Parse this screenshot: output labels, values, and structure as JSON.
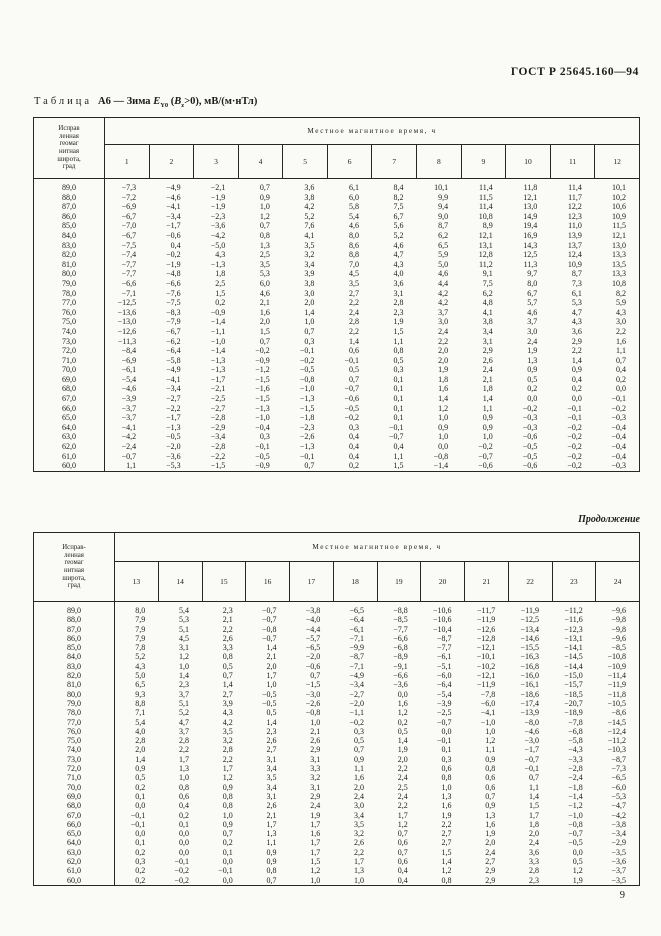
{
  "page": {
    "gost_header": "ГОСТ Р 25645.160—94",
    "continuation": "Продолжение",
    "page_number": "9"
  },
  "title": {
    "prefix": "Таблица",
    "mid": "А6 — Зима",
    "sym": "E",
    "sym_sub": "Y0",
    "open": "(",
    "bsym": "B",
    "b_sub": "z",
    "tail": ">0),",
    "units": "мВ/(м·нТл)"
  },
  "table1": {
    "stub_lines": [
      "Исправ",
      "ленная",
      "геомаг",
      "нитная",
      "широта,",
      "град"
    ],
    "time_header": "Местное магнитное время, ч",
    "columns": [
      "1",
      "2",
      "3",
      "4",
      "5",
      "6",
      "7",
      "8",
      "9",
      "10",
      "11",
      "12"
    ],
    "rows": [
      {
        "lat": "89,0",
        "v": [
          "−7,3",
          "−4,9",
          "−2,1",
          "0,7",
          "3,6",
          "6,1",
          "8,4",
          "10,1",
          "11,4",
          "11,8",
          "11,4",
          "10,1"
        ]
      },
      {
        "lat": "88,0",
        "v": [
          "−7,2",
          "−4,6",
          "−1,9",
          "0,9",
          "3,8",
          "6,0",
          "8,2",
          "9,9",
          "11,5",
          "12,1",
          "11,7",
          "10,2"
        ]
      },
      {
        "lat": "87,0",
        "v": [
          "−6,9",
          "−4,1",
          "−1,9",
          "1,0",
          "4,2",
          "5,8",
          "7,5",
          "9,4",
          "11,4",
          "13,0",
          "12,2",
          "10,6"
        ]
      },
      {
        "lat": "86,0",
        "v": [
          "−6,7",
          "−3,4",
          "−2,3",
          "1,2",
          "5,2",
          "5,4",
          "6,7",
          "9,0",
          "10,8",
          "14,9",
          "12,3",
          "10,9"
        ]
      },
      {
        "lat": "85,0",
        "v": [
          "−7,0",
          "−1,7",
          "−3,6",
          "0,7",
          "7,6",
          "4,6",
          "5,6",
          "8,7",
          "8,9",
          "19,4",
          "11,0",
          "11,5"
        ]
      },
      {
        "lat": "84,0",
        "v": [
          "−6,7",
          "−0,6",
          "−4,2",
          "0,8",
          "4,1",
          "8,0",
          "5,2",
          "6,2",
          "12,1",
          "16,9",
          "13,9",
          "12,1"
        ]
      },
      {
        "lat": "83,0",
        "v": [
          "−7,5",
          "0,4",
          "−5,0",
          "1,3",
          "3,5",
          "8,6",
          "4,6",
          "6,5",
          "13,1",
          "14,3",
          "13,7",
          "13,0"
        ]
      },
      {
        "lat": "82,0",
        "v": [
          "−7,4",
          "−0,2",
          "4,3",
          "2,5",
          "3,2",
          "8,8",
          "4,7",
          "5,9",
          "12,8",
          "12,5",
          "12,4",
          "13,3"
        ]
      },
      {
        "lat": "81,0",
        "v": [
          "−7,7",
          "−1,9",
          "−1,3",
          "3,5",
          "3,4",
          "7,0",
          "4,3",
          "5,0",
          "11,2",
          "11,3",
          "10,9",
          "13,5"
        ]
      },
      {
        "lat": "80,0",
        "v": [
          "−7,7",
          "−4,8",
          "1,8",
          "5,3",
          "3,9",
          "4,5",
          "4,0",
          "4,6",
          "9,1",
          "9,7",
          "8,7",
          "13,3"
        ]
      },
      {
        "lat": "79,0",
        "v": [
          "−6,6",
          "−6,6",
          "2,5",
          "6,0",
          "3,8",
          "3,5",
          "3,6",
          "4,4",
          "7,5",
          "8,0",
          "7,3",
          "10,8"
        ]
      },
      {
        "lat": "78,0",
        "v": [
          "−7,1",
          "−7,6",
          "1,5",
          "4,6",
          "3,0",
          "2,7",
          "3,1",
          "4,2",
          "6,2",
          "6,7",
          "6,1",
          "8,2"
        ]
      },
      {
        "lat": "77,0",
        "v": [
          "−12,5",
          "−7,5",
          "0,2",
          "2,1",
          "2,0",
          "2,2",
          "2,8",
          "4,2",
          "4,8",
          "5,7",
          "5,3",
          "5,9"
        ]
      },
      {
        "lat": "76,0",
        "v": [
          "−13,6",
          "−8,3",
          "−0,9",
          "1,6",
          "1,4",
          "2,4",
          "2,3",
          "3,7",
          "4,1",
          "4,6",
          "4,7",
          "4,3"
        ]
      },
      {
        "lat": "75,0",
        "v": [
          "−13,0",
          "−7,9",
          "−1,4",
          "2,0",
          "1,0",
          "2,8",
          "1,9",
          "3,0",
          "3,8",
          "3,7",
          "4,3",
          "3,0"
        ]
      },
      {
        "lat": "74,0",
        "v": [
          "−12,6",
          "−6,7",
          "−1,1",
          "1,5",
          "0,7",
          "2,2",
          "1,5",
          "2,4",
          "3,4",
          "3,0",
          "3,6",
          "2,2"
        ]
      },
      {
        "lat": "73,0",
        "v": [
          "−11,3",
          "−6,2",
          "−1,0",
          "0,7",
          "0,3",
          "1,4",
          "1,1",
          "2,2",
          "3,1",
          "2,4",
          "2,9",
          "1,6"
        ]
      },
      {
        "lat": "72,0",
        "v": [
          "−8,4",
          "−6,4",
          "−1,4",
          "−0,2",
          "−0,1",
          "0,6",
          "0,8",
          "2,0",
          "2,9",
          "1,9",
          "2,2",
          "1,1"
        ]
      },
      {
        "lat": "71,0",
        "v": [
          "−6,9",
          "−5,8",
          "−1,3",
          "−0,9",
          "−0,2",
          "−0,1",
          "0,5",
          "2,0",
          "2,6",
          "1,3",
          "1,4",
          "0,7"
        ]
      },
      {
        "lat": "70,0",
        "v": [
          "−6,1",
          "−4,9",
          "−1,3",
          "−1,2",
          "−0,5",
          "0,5",
          "0,3",
          "1,9",
          "2,4",
          "0,9",
          "0,9",
          "0,4"
        ]
      },
      {
        "lat": "69,0",
        "v": [
          "−5,4",
          "−4,1",
          "−1,7",
          "−1,5",
          "−0,8",
          "0,7",
          "0,1",
          "1,8",
          "2,1",
          "0,5",
          "0,4",
          "0,2"
        ]
      },
      {
        "lat": "68,0",
        "v": [
          "−4,6",
          "−3,4",
          "−2,1",
          "−1,6",
          "−1,0",
          "−0,7",
          "0,1",
          "1,6",
          "1,8",
          "0,2",
          "0,2",
          "0,0"
        ]
      },
      {
        "lat": "67,0",
        "v": [
          "−3,9",
          "−2,7",
          "−2,5",
          "−1,5",
          "−1,3",
          "−0,6",
          "0,1",
          "1,4",
          "1,4",
          "0,0",
          "0,0",
          "−0,1"
        ]
      },
      {
        "lat": "66,0",
        "v": [
          "−3,7",
          "−2,2",
          "−2,7",
          "−1,3",
          "−1,5",
          "−0,5",
          "0,1",
          "1,2",
          "1,1",
          "−0,2",
          "−0,1",
          "−0,2"
        ]
      },
      {
        "lat": "65,0",
        "v": [
          "−3,7",
          "−1,7",
          "−2,8",
          "−1,0",
          "−1,8",
          "−0,2",
          "0,1",
          "1,0",
          "0,9",
          "−0,3",
          "−0,1",
          "−0,3"
        ]
      },
      {
        "lat": "64,0",
        "v": [
          "−4,1",
          "−1,3",
          "−2,9",
          "−0,4",
          "−2,3",
          "0,3",
          "−0,1",
          "0,9",
          "0,9",
          "−0,3",
          "−0,2",
          "−0,4"
        ]
      },
      {
        "lat": "63,0",
        "v": [
          "−4,2",
          "−0,5",
          "−3,4",
          "0,3",
          "−2,6",
          "0,4",
          "−0,7",
          "1,0",
          "1,0",
          "−0,6",
          "−0,2",
          "−0,4"
        ]
      },
      {
        "lat": "62,0",
        "v": [
          "−2,4",
          "−2,0",
          "−2,8",
          "−0,1",
          "−1,3",
          "0,4",
          "0,4",
          "0,0",
          "−0,2",
          "−0,5",
          "−0,2",
          "−0,4"
        ]
      },
      {
        "lat": "61,0",
        "v": [
          "−0,7",
          "−3,6",
          "−2,2",
          "−0,5",
          "−0,1",
          "0,4",
          "1,1",
          "−0,8",
          "−0,7",
          "−0,5",
          "−0,2",
          "−0,4"
        ]
      },
      {
        "lat": "60,0",
        "v": [
          "1,1",
          "−5,3",
          "−1,5",
          "−0,9",
          "0,7",
          "0,2",
          "1,5",
          "−1,4",
          "−0,6",
          "−0,6",
          "−0,2",
          "−0,3"
        ]
      }
    ]
  },
  "table2": {
    "stub_lines": [
      "Исправ-",
      "ленная",
      "геомаг",
      "нитная",
      "широта,",
      "град"
    ],
    "time_header": "Местное магнитное время, ч",
    "columns": [
      "13",
      "14",
      "15",
      "16",
      "17",
      "18",
      "19",
      "20",
      "21",
      "22",
      "23",
      "24"
    ],
    "rows": [
      {
        "lat": "89,0",
        "v": [
          "8,0",
          "5,4",
          "2,3",
          "−0,7",
          "−3,8",
          "−6,5",
          "−8,8",
          "−10,6",
          "−11,7",
          "−11,9",
          "−11,2",
          "−9,6"
        ]
      },
      {
        "lat": "88,0",
        "v": [
          "7,9",
          "5,3",
          "2,1",
          "−0,7",
          "−4,0",
          "−6,4",
          "−8,5",
          "−10,6",
          "−11,9",
          "−12,5",
          "−11,6",
          "−9,8"
        ]
      },
      {
        "lat": "87,0",
        "v": [
          "7,9",
          "5,1",
          "2,2",
          "−0,8",
          "−4,4",
          "−6,1",
          "−7,7",
          "−10,4",
          "−12,6",
          "−13,4",
          "−12,3",
          "−9,8"
        ]
      },
      {
        "lat": "86,0",
        "v": [
          "7,9",
          "4,5",
          "2,6",
          "−0,7",
          "−5,7",
          "−7,1",
          "−6,6",
          "−8,7",
          "−12,8",
          "−14,6",
          "−13,1",
          "−9,6"
        ]
      },
      {
        "lat": "85,0",
        "v": [
          "7,8",
          "3,1",
          "3,3",
          "1,4",
          "−6,5",
          "−9,9",
          "−6,8",
          "−7,7",
          "−12,1",
          "−15,5",
          "−14,1",
          "−8,5"
        ]
      },
      {
        "lat": "84,0",
        "v": [
          "5,2",
          "1,2",
          "0,8",
          "2,1",
          "−2,0",
          "−8,7",
          "−8,9",
          "−6,1",
          "−10,1",
          "−16,3",
          "−14,5",
          "−10,8"
        ]
      },
      {
        "lat": "83,0",
        "v": [
          "4,3",
          "1,0",
          "0,5",
          "2,0",
          "−0,6",
          "−7,1",
          "−9,1",
          "−5,1",
          "−10,2",
          "−16,8",
          "−14,4",
          "−10,9"
        ]
      },
      {
        "lat": "82,0",
        "v": [
          "5,0",
          "1,4",
          "0,7",
          "1,7",
          "0,7",
          "−4,9",
          "−6,6",
          "−6,0",
          "−12,1",
          "−16,0",
          "−15,0",
          "−11,4"
        ]
      },
      {
        "lat": "81,0",
        "v": [
          "6,5",
          "2,3",
          "1,4",
          "1,0",
          "−1,5",
          "−3,4",
          "−3,6",
          "−6,4",
          "−11,9",
          "−16,1",
          "−15,7",
          "−11,9"
        ]
      },
      {
        "lat": "80,0",
        "v": [
          "9,3",
          "3,7",
          "2,7",
          "−0,5",
          "−3,0",
          "−2,7",
          "0,0",
          "−5,4",
          "−7,8",
          "−18,6",
          "−18,5",
          "−11,8"
        ]
      },
      {
        "lat": "79,0",
        "v": [
          "8,8",
          "5,1",
          "3,9",
          "−0,5",
          "−2,6",
          "−2,0",
          "1,6",
          "−3,9",
          "−6,0",
          "−17,4",
          "−20,7",
          "−10,5"
        ]
      },
      {
        "lat": "78,0",
        "v": [
          "7,1",
          "5,2",
          "4,3",
          "0,5",
          "−0,8",
          "−1,1",
          "1,2",
          "−2,5",
          "−4,1",
          "−13,9",
          "−18,9",
          "−8,6"
        ]
      },
      {
        "lat": "77,0",
        "v": [
          "5,4",
          "4,7",
          "4,2",
          "1,4",
          "1,0",
          "−0,2",
          "0,2",
          "−0,7",
          "−1,0",
          "−8,0",
          "−7,8",
          "−14,5"
        ]
      },
      {
        "lat": "76,0",
        "v": [
          "4,0",
          "3,7",
          "3,5",
          "2,3",
          "2,1",
          "0,3",
          "0,5",
          "0,0",
          "1,0",
          "−4,6",
          "−6,8",
          "−12,4"
        ]
      },
      {
        "lat": "75,0",
        "v": [
          "2,8",
          "2,8",
          "3,2",
          "2,6",
          "2,6",
          "0,5",
          "1,4",
          "−0,1",
          "1,2",
          "−3,0",
          "−5,8",
          "−11,2"
        ]
      },
      {
        "lat": "74,0",
        "v": [
          "2,0",
          "2,2",
          "2,8",
          "2,7",
          "2,9",
          "0,7",
          "1,9",
          "0,1",
          "1,1",
          "−1,7",
          "−4,3",
          "−10,3"
        ]
      },
      {
        "lat": "73,0",
        "v": [
          "1,4",
          "1,7",
          "2,2",
          "3,1",
          "3,1",
          "0,9",
          "2,0",
          "0,3",
          "0,9",
          "−0,7",
          "−3,3",
          "−8,7"
        ]
      },
      {
        "lat": "72,0",
        "v": [
          "0,9",
          "1,3",
          "1,7",
          "3,4",
          "3,3",
          "1,1",
          "2,2",
          "0,6",
          "0,8",
          "−0,1",
          "−2,8",
          "−7,3"
        ]
      },
      {
        "lat": "71,0",
        "v": [
          "0,5",
          "1,0",
          "1,2",
          "3,5",
          "3,2",
          "1,6",
          "2,4",
          "0,8",
          "0,6",
          "0,7",
          "−2,4",
          "−6,5"
        ]
      },
      {
        "lat": "70,0",
        "v": [
          "0,2",
          "0,8",
          "0,9",
          "3,4",
          "3,1",
          "2,0",
          "2,5",
          "1,0",
          "0,6",
          "1,1",
          "−1,8",
          "−6,0"
        ]
      },
      {
        "lat": "69,0",
        "v": [
          "0,1",
          "0,6",
          "0,8",
          "3,1",
          "2,9",
          "2,4",
          "2,4",
          "1,3",
          "0,7",
          "1,4",
          "−1,4",
          "−5,3"
        ]
      },
      {
        "lat": "68,0",
        "v": [
          "0,0",
          "0,4",
          "0,8",
          "2,6",
          "2,4",
          "3,0",
          "2,2",
          "1,6",
          "0,9",
          "1,5",
          "−1,2",
          "−4,7"
        ]
      },
      {
        "lat": "67,0",
        "v": [
          "−0,1",
          "0,2",
          "1,0",
          "2,1",
          "1,9",
          "3,4",
          "1,7",
          "1,9",
          "1,3",
          "1,7",
          "−1,0",
          "−4,2"
        ]
      },
      {
        "lat": "66,0",
        "v": [
          "−0,1",
          "0,1",
          "0,9",
          "1,7",
          "1,7",
          "3,5",
          "1,2",
          "2,2",
          "1,6",
          "1,8",
          "−0,8",
          "−3,8"
        ]
      },
      {
        "lat": "65,0",
        "v": [
          "0,0",
          "0,0",
          "0,7",
          "1,3",
          "1,6",
          "3,2",
          "0,7",
          "2,7",
          "1,9",
          "2,0",
          "−0,7",
          "−3,4"
        ]
      },
      {
        "lat": "64,0",
        "v": [
          "0,1",
          "0,0",
          "0,2",
          "1,1",
          "1,7",
          "2,6",
          "0,6",
          "2,7",
          "2,0",
          "2,4",
          "−0,5",
          "−2,9"
        ]
      },
      {
        "lat": "63,0",
        "v": [
          "0,2",
          "0,0",
          "0,1",
          "0,9",
          "1,7",
          "2,2",
          "0,7",
          "1,5",
          "2,4",
          "3,6",
          "0,0",
          "−3,5"
        ]
      },
      {
        "lat": "62,0",
        "v": [
          "0,3",
          "−0,1",
          "0,0",
          "0,9",
          "1,5",
          "1,7",
          "0,6",
          "1,4",
          "2,7",
          "3,3",
          "0,5",
          "−3,6"
        ]
      },
      {
        "lat": "61,0",
        "v": [
          "0,2",
          "−0,2",
          "−0,1",
          "0,8",
          "1,2",
          "1,3",
          "0,4",
          "1,2",
          "2,9",
          "2,8",
          "1,2",
          "−3,7"
        ]
      },
      {
        "lat": "60,0",
        "v": [
          "0,2",
          "−0,2",
          "0,0",
          "0,7",
          "1,0",
          "1,0",
          "0,4",
          "0,8",
          "2,9",
          "2,3",
          "1,9",
          "−3,5"
        ]
      }
    ]
  }
}
